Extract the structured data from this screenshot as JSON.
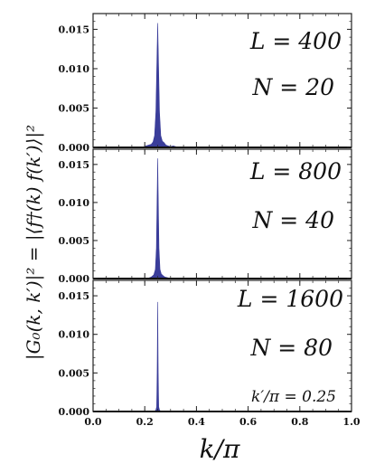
{
  "chart_data": {
    "type": "area",
    "xlabel": "k/π",
    "ylabel": "|G₀(k, k′)|² = |⟨f†(k) f(k′)⟩|²",
    "xlim": [
      0.0,
      1.0
    ],
    "ylim": [
      0.0,
      0.017
    ],
    "x_ticks": [
      "0.0",
      "0.2",
      "0.4",
      "0.6",
      "0.8",
      "1.0"
    ],
    "y_ticks": [
      "0.000",
      "0.005",
      "0.010",
      "0.015"
    ],
    "fill_color": "#3a3d9a",
    "panels": [
      {
        "annotations": [
          "L = 400",
          "N = 20"
        ],
        "points": [
          [
            0.19,
            0.0
          ],
          [
            0.205,
            0.0002
          ],
          [
            0.215,
            0.0003
          ],
          [
            0.225,
            0.0004
          ],
          [
            0.232,
            0.0007
          ],
          [
            0.238,
            0.0015
          ],
          [
            0.243,
            0.0045
          ],
          [
            0.247,
            0.011
          ],
          [
            0.25,
            0.0158
          ],
          [
            0.253,
            0.011
          ],
          [
            0.257,
            0.0045
          ],
          [
            0.262,
            0.0015
          ],
          [
            0.268,
            0.0008
          ],
          [
            0.275,
            0.0006
          ],
          [
            0.282,
            0.0003
          ],
          [
            0.29,
            0.0002
          ],
          [
            0.3,
            0.0001
          ],
          [
            0.31,
            0.0002
          ],
          [
            0.32,
            0.0001
          ],
          [
            0.33,
            0.0
          ]
        ]
      },
      {
        "annotations": [
          "L = 800",
          "N = 40"
        ],
        "points": [
          [
            0.21,
            0.0
          ],
          [
            0.225,
            0.0002
          ],
          [
            0.235,
            0.0005
          ],
          [
            0.241,
            0.0012
          ],
          [
            0.245,
            0.004
          ],
          [
            0.248,
            0.011
          ],
          [
            0.25,
            0.0158
          ],
          [
            0.252,
            0.011
          ],
          [
            0.255,
            0.004
          ],
          [
            0.259,
            0.0012
          ],
          [
            0.264,
            0.0006
          ],
          [
            0.27,
            0.0004
          ],
          [
            0.278,
            0.0002
          ],
          [
            0.29,
            0.0001
          ],
          [
            0.3,
            0.0
          ]
        ]
      },
      {
        "annotations": [
          "L = 1600",
          "N = 80",
          "k′/π = 0.25"
        ],
        "points": [
          [
            0.238,
            0.0
          ],
          [
            0.243,
            0.0002
          ],
          [
            0.246,
            0.0006
          ],
          [
            0.248,
            0.005
          ],
          [
            0.25,
            0.0142
          ],
          [
            0.252,
            0.005
          ],
          [
            0.254,
            0.0006
          ],
          [
            0.257,
            0.0002
          ],
          [
            0.262,
            0.0
          ]
        ]
      }
    ]
  }
}
